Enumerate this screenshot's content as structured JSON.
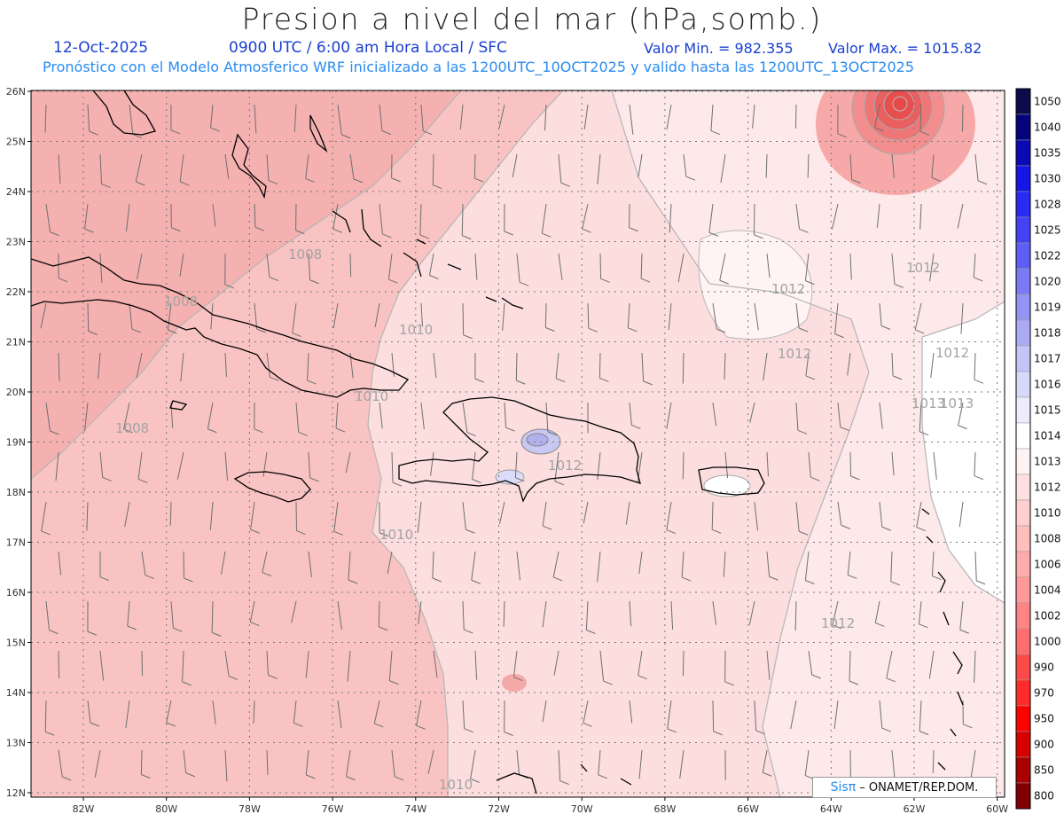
{
  "header": {
    "title": "Presion a nivel del mar (hPa,somb.)",
    "date": "12-Oct-2025",
    "time": "0900 UTC / 6:00 am Hora Local / SFC",
    "min": "Valor Min. = 982.355",
    "max": "Valor Max. = 1015.82",
    "model": "Pronóstico con el Modelo Atmosferico WRF inicializado a las 1200UTC_10OCT2025 y valido hasta las  1200UTC_13OCT2025"
  },
  "axes": {
    "lat_labels": [
      "26N",
      "25N",
      "24N",
      "23N",
      "22N",
      "21N",
      "20N",
      "19N",
      "18N",
      "17N",
      "16N",
      "15N",
      "14N",
      "13N",
      "12N"
    ],
    "lon_labels": [
      "82W",
      "80W",
      "78W",
      "76W",
      "74W",
      "72W",
      "70W",
      "68W",
      "66W",
      "64W",
      "62W",
      "60W"
    ]
  },
  "contour_labels": [
    "1008",
    "1008",
    "1008",
    "1010",
    "1010",
    "1010",
    "1010",
    "1012",
    "1012",
    "1012",
    "1012",
    "1012",
    "1012",
    "1013",
    "1013"
  ],
  "colorbar": {
    "levels": [
      "1050",
      "1040",
      "1035",
      "1030",
      "1028",
      "1025",
      "1022",
      "1020",
      "1019",
      "1018",
      "1017",
      "1016",
      "1015",
      "1014",
      "1013",
      "1012",
      "1010",
      "1008",
      "1006",
      "1004",
      "1002",
      "1000",
      "990",
      "970",
      "950",
      "900",
      "850",
      "800"
    ],
    "colors": [
      "#0c0c4a",
      "#04047a",
      "#0a0ab5",
      "#1515e6",
      "#2a2af5",
      "#4343f5",
      "#5e5ef5",
      "#7a7af5",
      "#9494f5",
      "#ababf5",
      "#c4c4f7",
      "#d8d8fa",
      "#ececfc",
      "#ffffff",
      "#fff2f2",
      "#ffe0e0",
      "#ffcfcf",
      "#ffbdbd",
      "#ffabab",
      "#ff9999",
      "#ff8585",
      "#ff6e6e",
      "#ff4a4a",
      "#ff2a2a",
      "#ff0000",
      "#d60000",
      "#aa0000",
      "#800000"
    ]
  },
  "credit": {
    "brand": "Sisπ",
    "text": "– ONAMET/REP.DOM."
  }
}
